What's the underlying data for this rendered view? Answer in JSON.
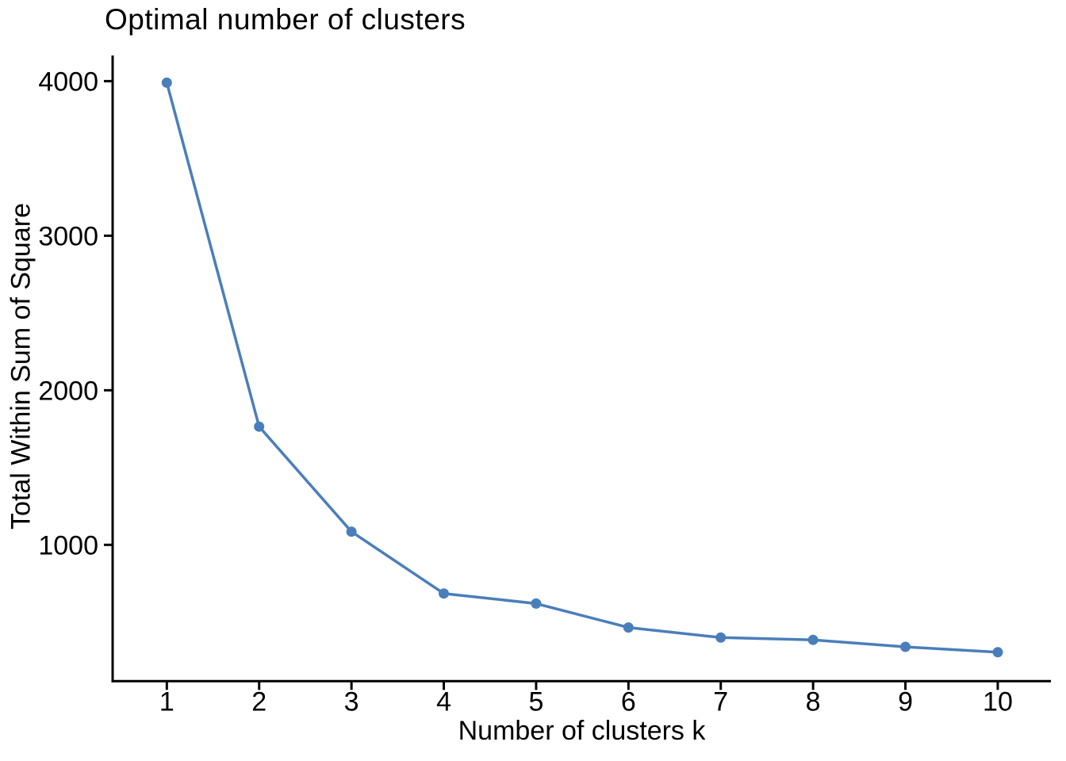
{
  "chart_data": {
    "type": "line",
    "title": "Optimal number of clusters",
    "xlabel": "Number of clusters k",
    "ylabel": "Total Within Sum of Square",
    "x": [
      1,
      2,
      3,
      4,
      5,
      6,
      7,
      8,
      9,
      10
    ],
    "values": [
      3990,
      1765,
      1085,
      685,
      620,
      465,
      400,
      385,
      340,
      305
    ],
    "x_tick_labels": [
      "1",
      "2",
      "3",
      "4",
      "5",
      "6",
      "7",
      "8",
      "9",
      "10"
    ],
    "y_ticks": [
      1000,
      2000,
      3000,
      4000
    ],
    "xlim": [
      0.413,
      10.576
    ],
    "ylim": [
      118,
      4166
    ],
    "grid": false,
    "legend_position": "none",
    "line_color": "#4A7EBB",
    "point_color": "#4A7EBB",
    "axis_color": "#000000",
    "text_color": "#000000",
    "background_color": "#FFFFFF"
  }
}
